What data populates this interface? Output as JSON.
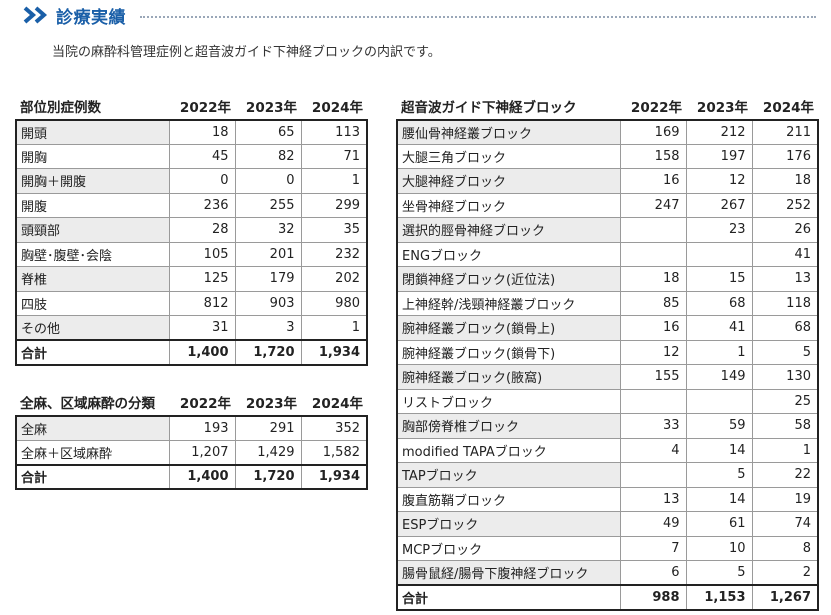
{
  "heading": {
    "title": "診療実績"
  },
  "intro": "当院の麻酔科管理症例と超音波ガイド下神経ブロックの内訳です。",
  "table_site": {
    "headers": [
      "部位別症例数",
      "2022年",
      "2023年",
      "2024年"
    ],
    "rows": [
      [
        "開頭",
        "18",
        "65",
        "113"
      ],
      [
        "開胸",
        "45",
        "82",
        "71"
      ],
      [
        "開胸＋開腹",
        "0",
        "0",
        "1"
      ],
      [
        "開腹",
        "236",
        "255",
        "299"
      ],
      [
        "頭頸部",
        "28",
        "32",
        "35"
      ],
      [
        "胸壁･腹壁･会陰",
        "105",
        "201",
        "232"
      ],
      [
        "脊椎",
        "125",
        "179",
        "202"
      ],
      [
        "四肢",
        "812",
        "903",
        "980"
      ],
      [
        "その他",
        "31",
        "3",
        "1"
      ]
    ],
    "total": [
      "合計",
      "1,400",
      "1,720",
      "1,934"
    ]
  },
  "table_anes": {
    "headers": [
      "全麻、区域麻酔の分類",
      "2022年",
      "2023年",
      "2024年"
    ],
    "rows": [
      [
        "全麻",
        "193",
        "291",
        "352"
      ],
      [
        "全麻＋区域麻酔",
        "1,207",
        "1,429",
        "1,582"
      ]
    ],
    "total": [
      "合計",
      "1,400",
      "1,720",
      "1,934"
    ]
  },
  "table_block": {
    "headers": [
      "超音波ガイド下神経ブロック",
      "2022年",
      "2023年",
      "2024年"
    ],
    "rows": [
      [
        "腰仙骨神経叢ブロック",
        "169",
        "212",
        "211"
      ],
      [
        "大腿三角ブロック",
        "158",
        "197",
        "176"
      ],
      [
        "大腿神経ブロック",
        "16",
        "12",
        "18"
      ],
      [
        "坐骨神経ブロック",
        "247",
        "267",
        "252"
      ],
      [
        "選択的脛骨神経ブロック",
        "",
        "23",
        "26"
      ],
      [
        "ENGブロック",
        "",
        "",
        "41"
      ],
      [
        "閉鎖神経ブロック(近位法)",
        "18",
        "15",
        "13"
      ],
      [
        "上神経幹/浅頸神経叢ブロック",
        "85",
        "68",
        "118"
      ],
      [
        "腕神経叢ブロック(鎖骨上)",
        "16",
        "41",
        "68"
      ],
      [
        "腕神経叢ブロック(鎖骨下)",
        "12",
        "1",
        "5"
      ],
      [
        "腕神経叢ブロック(腋窩)",
        "155",
        "149",
        "130"
      ],
      [
        "リストブロック",
        "",
        "",
        "25"
      ],
      [
        "胸部傍脊椎ブロック",
        "33",
        "59",
        "58"
      ],
      [
        "modified TAPAブロック",
        "4",
        "14",
        "1"
      ],
      [
        "TAPブロック",
        "",
        "5",
        "22"
      ],
      [
        "腹直筋鞘ブロック",
        "13",
        "14",
        "19"
      ],
      [
        "ESPブロック",
        "49",
        "61",
        "74"
      ],
      [
        "MCPブロック",
        "7",
        "10",
        "8"
      ],
      [
        "腸骨鼠経/腸骨下腹神経ブロック",
        "6",
        "5",
        "2"
      ]
    ],
    "total": [
      "合計",
      "988",
      "1,153",
      "1,267"
    ]
  }
}
